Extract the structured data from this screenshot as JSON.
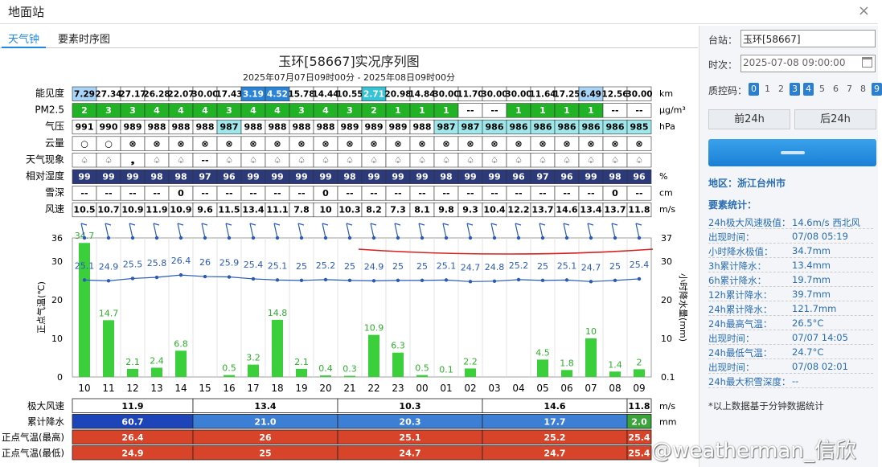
{
  "window": {
    "title": "地面站",
    "close": "×"
  },
  "tabs": [
    "天气钟",
    "要素时序图"
  ],
  "chart": {
    "title": "玉环[58667]实况序列图",
    "subtitle": "2025年07月07日09时00分 - 2025年08日09时00分"
  },
  "rows": [
    {
      "label": "能见度",
      "unit": "km",
      "values": [
        "7.29",
        "27.34",
        "27.17",
        "26.28",
        "22.07",
        "30.00",
        "17.43",
        "3.19",
        "4.52",
        "15.78",
        "14.44",
        "10.55",
        "2.71",
        "20.98",
        "14.84",
        "30.00",
        "11.70",
        "30.00",
        "30.00",
        "11.64",
        "17.25",
        "6.49",
        "12.56",
        "30.00"
      ]
    },
    {
      "label": "PM2.5",
      "unit": "μg/m³",
      "values": [
        "2",
        "3",
        "3",
        "4",
        "4",
        "4",
        "3",
        "4",
        "4",
        "3",
        "4",
        "3",
        "2",
        "1",
        "1",
        "1",
        "--",
        "--",
        "1",
        "1",
        "1",
        "1",
        "--",
        "--"
      ]
    },
    {
      "label": "气压",
      "unit": "hPa",
      "values": [
        "991",
        "990",
        "989",
        "988",
        "988",
        "988",
        "987",
        "988",
        "988",
        "988",
        "988",
        "989",
        "989",
        "989",
        "988",
        "987",
        "987",
        "986",
        "986",
        "986",
        "986",
        "986",
        "986",
        "985"
      ]
    },
    {
      "label": "云量",
      "unit": "",
      "values": [
        "○",
        "○",
        "⊗",
        "⊗",
        "⊗",
        "⊗",
        "⊗",
        "⊗",
        "⊗",
        "⊗",
        "⊗",
        "⊗",
        "⊗",
        "⊗",
        "⊗",
        "⊗",
        "⊗",
        "⊗",
        "⊗",
        "⊗",
        "⊗",
        "⊗",
        "⊗",
        "⊗"
      ]
    },
    {
      "label": "天气现象",
      "unit": "",
      "values": [
        "♤",
        "♤",
        "❟",
        "♤",
        "♤",
        "--",
        "♤",
        "♤",
        "♤",
        "♤",
        "♤",
        "♤",
        "♤",
        "♤",
        "♤",
        "♤",
        "♤",
        "♤",
        "♤",
        "♤",
        "♤",
        "♤",
        "♤",
        "♤"
      ]
    },
    {
      "label": "相对湿度",
      "unit": "%",
      "values": [
        "99",
        "99",
        "99",
        "98",
        "98",
        "97",
        "96",
        "99",
        "99",
        "99",
        "99",
        "98",
        "99",
        "99",
        "99",
        "98",
        "99",
        "99",
        "96",
        "97",
        "96",
        "99",
        "98",
        "96"
      ]
    },
    {
      "label": "雪深",
      "unit": "cm",
      "values": [
        "--",
        "--",
        "--",
        "--",
        "0",
        "--",
        "--",
        "--",
        "--",
        "--",
        "0",
        "--",
        "--",
        "--",
        "--",
        "--",
        "--",
        "--",
        "--",
        "--",
        "--",
        "--",
        "0",
        "--"
      ]
    },
    {
      "label": "风速",
      "unit": "m/s",
      "values": [
        "10.5",
        "10.7",
        "10.9",
        "11.9",
        "10.9",
        "9.6",
        "11.5",
        "13.4",
        "11.1",
        "7.8",
        "10",
        "10.3",
        "8.2",
        "7.3",
        "8.1",
        "9.8",
        "9.3",
        "10.4",
        "12.2",
        "13.7",
        "14.6",
        "13.4",
        "13.7",
        "11.8"
      ]
    }
  ],
  "chart_data": {
    "type": "bar",
    "categories": [
      "10",
      "11",
      "12",
      "13",
      "14",
      "15",
      "16",
      "17",
      "18",
      "19",
      "20",
      "21",
      "22",
      "23",
      "00",
      "01",
      "02",
      "03",
      "04",
      "05",
      "06",
      "07",
      "08",
      "09"
    ],
    "series": [
      {
        "name": "小时降水量",
        "values": [
          34.7,
          14.7,
          2.1,
          2.4,
          6.8,
          0,
          0.5,
          3.2,
          14.8,
          2.1,
          0.4,
          0.3,
          10.9,
          6.3,
          0.5,
          0.1,
          2.2,
          0,
          0,
          4.5,
          1.8,
          10,
          1.4,
          2
        ]
      },
      {
        "name": "正点气温",
        "values": [
          25.1,
          24.9,
          25.5,
          25.8,
          26.4,
          26,
          25.9,
          25.4,
          25.1,
          25,
          25.2,
          25,
          24.9,
          25,
          25,
          25.1,
          24.7,
          24.8,
          25.2,
          25,
          25.1,
          24.7,
          25,
          25.4
        ]
      }
    ],
    "left_axis_ticks": [
      "36",
      "30",
      "20",
      "10",
      "0"
    ],
    "right_axis_ticks": [
      "37",
      "30",
      "20",
      "10",
      "0.1"
    ],
    "ylabel": "正点气温(℃)",
    "ylabel_right": "小时降水量(mm)",
    "ylim": [
      0,
      36
    ]
  },
  "summary_rows": [
    {
      "label": "极大风速",
      "unit": "m/s",
      "cells": [
        "11.9",
        "13.4",
        "10.3",
        "14.6",
        "11.8"
      ]
    },
    {
      "label": "累计降水",
      "unit": "mm",
      "cells": [
        "60.7",
        "21.0",
        "20.3",
        "17.7",
        "2.0"
      ]
    },
    {
      "label": "正点气温(最高)",
      "unit": "",
      "cells": [
        "26.4",
        "26",
        "25.1",
        "25.2",
        "25.4"
      ]
    },
    {
      "label": "正点气温(最低)",
      "unit": "",
      "cells": [
        "24.9",
        "25",
        "24.7",
        "24.7",
        "25.4"
      ]
    }
  ],
  "sidebar": {
    "station_label": "台站：",
    "station_value": "玉环[58667]",
    "time_label": "时次：",
    "time_value": "2025-07-08 09:00:00",
    "qc_label": "质控码：",
    "qc_codes": [
      "0",
      "1",
      "2",
      "3",
      "4",
      "5",
      "6",
      "7",
      "8",
      "9"
    ],
    "prev_btn": "前24h",
    "next_btn": "后24h",
    "region": "地区：浙江台州市",
    "stats_title": "要素统计：",
    "stats": [
      {
        "k": "24h极大风速极值：",
        "v": "14.6m/s 西北风"
      },
      {
        "k": "出现时间：",
        "v": "07/08 05:19"
      },
      {
        "k": "小时降水极值：",
        "v": "34.7mm"
      },
      {
        "k": "3h累计降水：",
        "v": "13.4mm"
      },
      {
        "k": "6h累计降水：",
        "v": "19.7mm"
      },
      {
        "k": "12h累计降水：",
        "v": "39.7mm"
      },
      {
        "k": "24h累计降水：",
        "v": "121.7mm"
      },
      {
        "k": "24h最高气温：",
        "v": "26.5°C"
      },
      {
        "k": "出现时间：",
        "v": "07/07 14:05"
      },
      {
        "k": "24h最低气温：",
        "v": "24.7°C"
      },
      {
        "k": "出现时间：",
        "v": "07/08 02:01"
      },
      {
        "k": "24h最大积雪深度：",
        "v": "--"
      }
    ],
    "note": "*以上数据基于分钟数据统计"
  },
  "watermark": "@weatherman_信欣"
}
